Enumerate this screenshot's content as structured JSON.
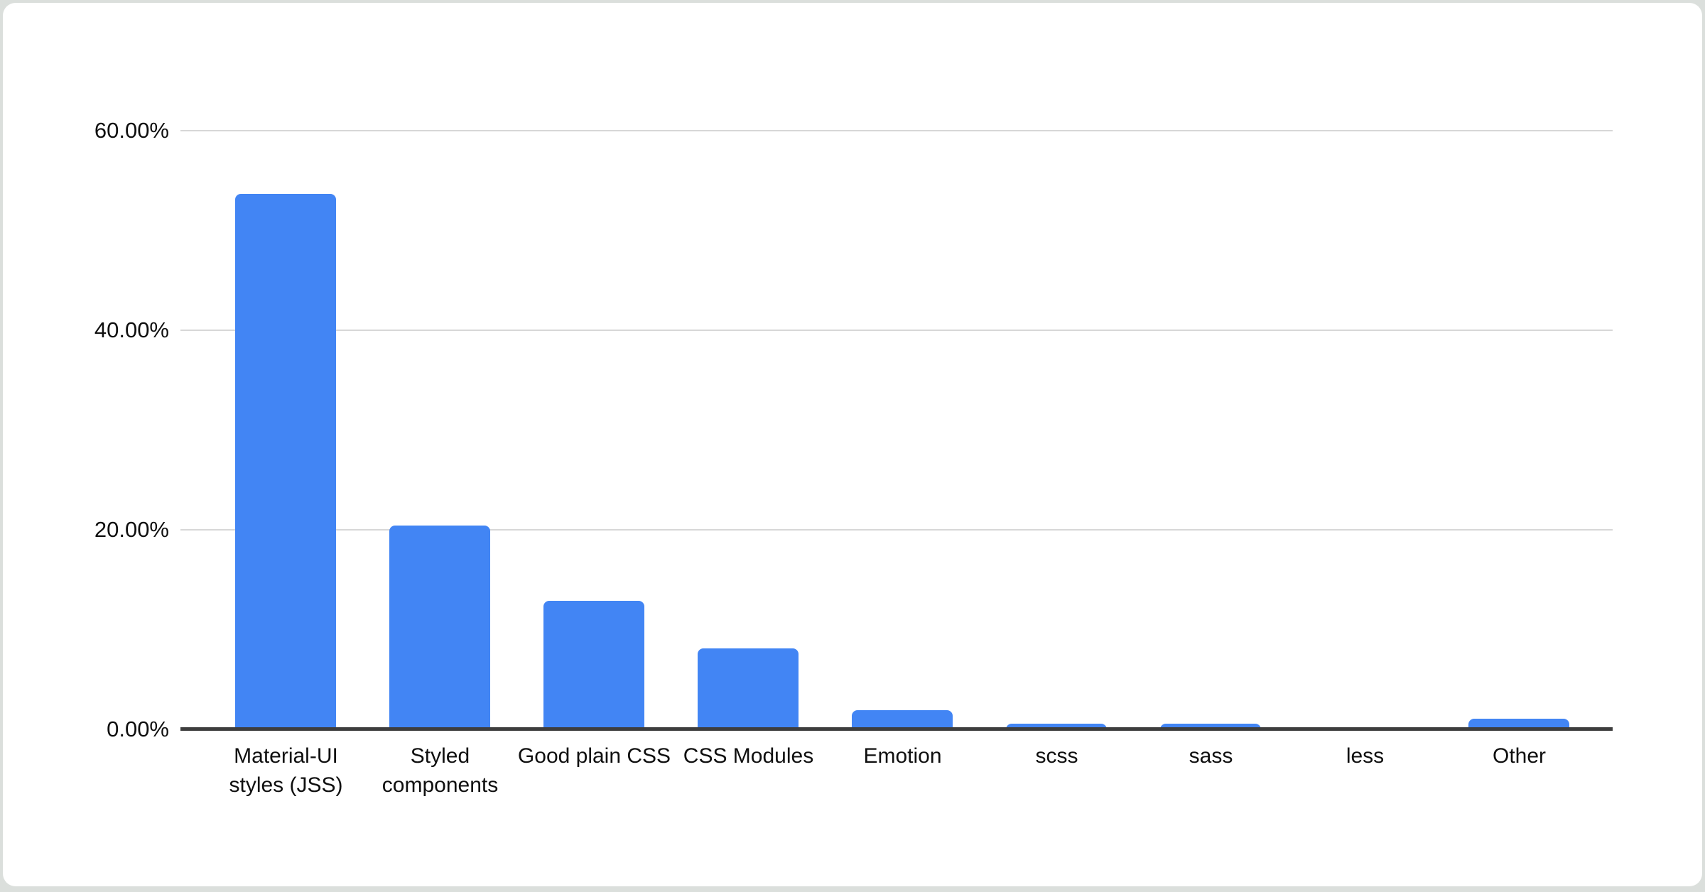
{
  "page": {
    "background_color": "#dbdfdc",
    "card_color": "#ffffff"
  },
  "chart_data": {
    "type": "bar",
    "title": "",
    "xlabel": "",
    "ylabel": "",
    "legend": "none",
    "grid": "horizontal",
    "bar_color": "#4285f4",
    "gridline_color": "#d7d7d7",
    "axis_line_color": "#3d3d3d",
    "label_color": "#0f0f0f",
    "ylim": [
      0,
      66
    ],
    "y_ticks": [
      {
        "label": "60.00%",
        "value": 60
      },
      {
        "label": "40.00%",
        "value": 40
      },
      {
        "label": "20.00%",
        "value": 20
      },
      {
        "label": "0.00%",
        "value": 0
      }
    ],
    "categories": [
      "Material-UI styles (JSS)",
      "Styled components",
      "Good plain CSS",
      "CSS Modules",
      "Emotion",
      "scss",
      "sass",
      "less",
      "Other"
    ],
    "values": [
      53.7,
      20.4,
      12.9,
      8.1,
      1.9,
      0.6,
      0.6,
      0,
      1.1
    ]
  }
}
